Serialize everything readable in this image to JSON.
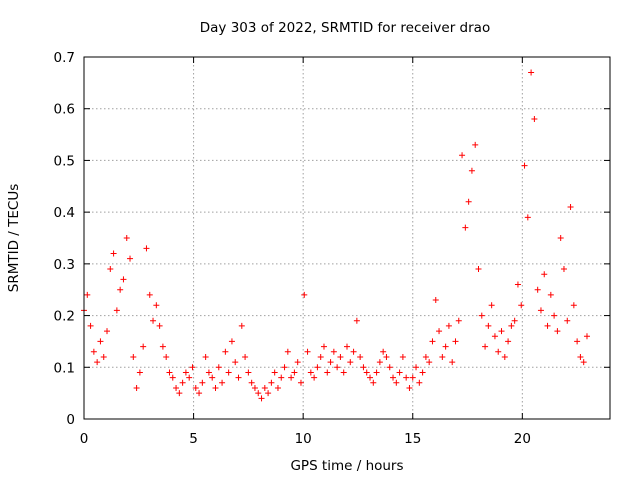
{
  "chart_data": {
    "type": "scatter",
    "title": "Day 303 of 2022, SRMTID for receiver drao",
    "xlabel": "GPS time / hours",
    "ylabel": "SRMTID / TECUs",
    "xlim": [
      0,
      24
    ],
    "ylim": [
      0,
      0.7
    ],
    "xticks": [
      0,
      5,
      10,
      15,
      20
    ],
    "xtick_labels": [
      "0",
      "5",
      "10",
      "15",
      "20"
    ],
    "yticks": [
      0,
      0.1,
      0.2,
      0.3,
      0.4,
      0.5,
      0.6,
      0.7
    ],
    "ytick_labels": [
      "0",
      "0.1",
      "0.2",
      "0.3",
      "0.4",
      "0.5",
      "0.6",
      "0.7"
    ],
    "grid": true,
    "marker": "plus",
    "color": "#ff0000",
    "series": [
      {
        "name": "SRMTID",
        "x": [
          0.0,
          0.15,
          0.3,
          0.45,
          0.6,
          0.75,
          0.9,
          1.05,
          1.2,
          1.35,
          1.5,
          1.65,
          1.8,
          1.95,
          2.1,
          2.25,
          2.4,
          2.55,
          2.7,
          2.85,
          3.0,
          3.15,
          3.3,
          3.45,
          3.6,
          3.75,
          3.9,
          4.05,
          4.2,
          4.35,
          4.5,
          4.65,
          4.8,
          4.95,
          5.1,
          5.25,
          5.4,
          5.55,
          5.7,
          5.85,
          6.0,
          6.15,
          6.3,
          6.45,
          6.6,
          6.75,
          6.9,
          7.05,
          7.2,
          7.35,
          7.5,
          7.65,
          7.8,
          7.95,
          8.1,
          8.25,
          8.4,
          8.55,
          8.7,
          8.85,
          9.0,
          9.15,
          9.3,
          9.45,
          9.6,
          9.75,
          9.9,
          10.05,
          10.2,
          10.35,
          10.5,
          10.65,
          10.8,
          10.95,
          11.1,
          11.25,
          11.4,
          11.55,
          11.7,
          11.85,
          12.0,
          12.15,
          12.3,
          12.45,
          12.6,
          12.75,
          12.9,
          13.05,
          13.2,
          13.35,
          13.5,
          13.65,
          13.8,
          13.95,
          14.1,
          14.25,
          14.4,
          14.55,
          14.7,
          14.85,
          15.0,
          15.15,
          15.3,
          15.45,
          15.6,
          15.75,
          15.9,
          16.05,
          16.2,
          16.35,
          16.5,
          16.65,
          16.8,
          16.95,
          17.1,
          17.25,
          17.4,
          17.55,
          17.7,
          17.85,
          18.0,
          18.15,
          18.3,
          18.45,
          18.6,
          18.75,
          18.9,
          19.05,
          19.2,
          19.35,
          19.5,
          19.65,
          19.8,
          19.95,
          20.1,
          20.25,
          20.4,
          20.55,
          20.7,
          20.85,
          21.0,
          21.15,
          21.3,
          21.45,
          21.6,
          21.75,
          21.9,
          22.05,
          22.2,
          22.35,
          22.5,
          22.65,
          22.8,
          22.95
        ],
        "y": [
          0.21,
          0.24,
          0.18,
          0.13,
          0.11,
          0.15,
          0.12,
          0.17,
          0.29,
          0.32,
          0.21,
          0.25,
          0.27,
          0.35,
          0.31,
          0.12,
          0.06,
          0.09,
          0.14,
          0.33,
          0.24,
          0.19,
          0.22,
          0.18,
          0.14,
          0.12,
          0.09,
          0.08,
          0.06,
          0.05,
          0.07,
          0.09,
          0.08,
          0.1,
          0.06,
          0.05,
          0.07,
          0.12,
          0.09,
          0.08,
          0.06,
          0.1,
          0.07,
          0.13,
          0.09,
          0.15,
          0.11,
          0.08,
          0.18,
          0.12,
          0.09,
          0.07,
          0.06,
          0.05,
          0.04,
          0.06,
          0.05,
          0.07,
          0.09,
          0.06,
          0.08,
          0.1,
          0.13,
          0.08,
          0.09,
          0.11,
          0.07,
          0.24,
          0.13,
          0.09,
          0.08,
          0.1,
          0.12,
          0.14,
          0.09,
          0.11,
          0.13,
          0.1,
          0.12,
          0.09,
          0.14,
          0.11,
          0.13,
          0.19,
          0.12,
          0.1,
          0.09,
          0.08,
          0.07,
          0.09,
          0.11,
          0.13,
          0.12,
          0.1,
          0.08,
          0.07,
          0.09,
          0.12,
          0.08,
          0.06,
          0.08,
          0.1,
          0.07,
          0.09,
          0.12,
          0.11,
          0.15,
          0.23,
          0.17,
          0.12,
          0.14,
          0.18,
          0.11,
          0.15,
          0.19,
          0.51,
          0.37,
          0.42,
          0.48,
          0.53,
          0.29,
          0.2,
          0.14,
          0.18,
          0.22,
          0.16,
          0.13,
          0.17,
          0.12,
          0.15,
          0.18,
          0.19,
          0.26,
          0.22,
          0.49,
          0.39,
          0.67,
          0.58,
          0.25,
          0.21,
          0.28,
          0.18,
          0.24,
          0.2,
          0.17,
          0.35,
          0.29,
          0.19,
          0.41,
          0.22,
          0.15,
          0.12,
          0.11,
          0.16
        ]
      }
    ]
  }
}
